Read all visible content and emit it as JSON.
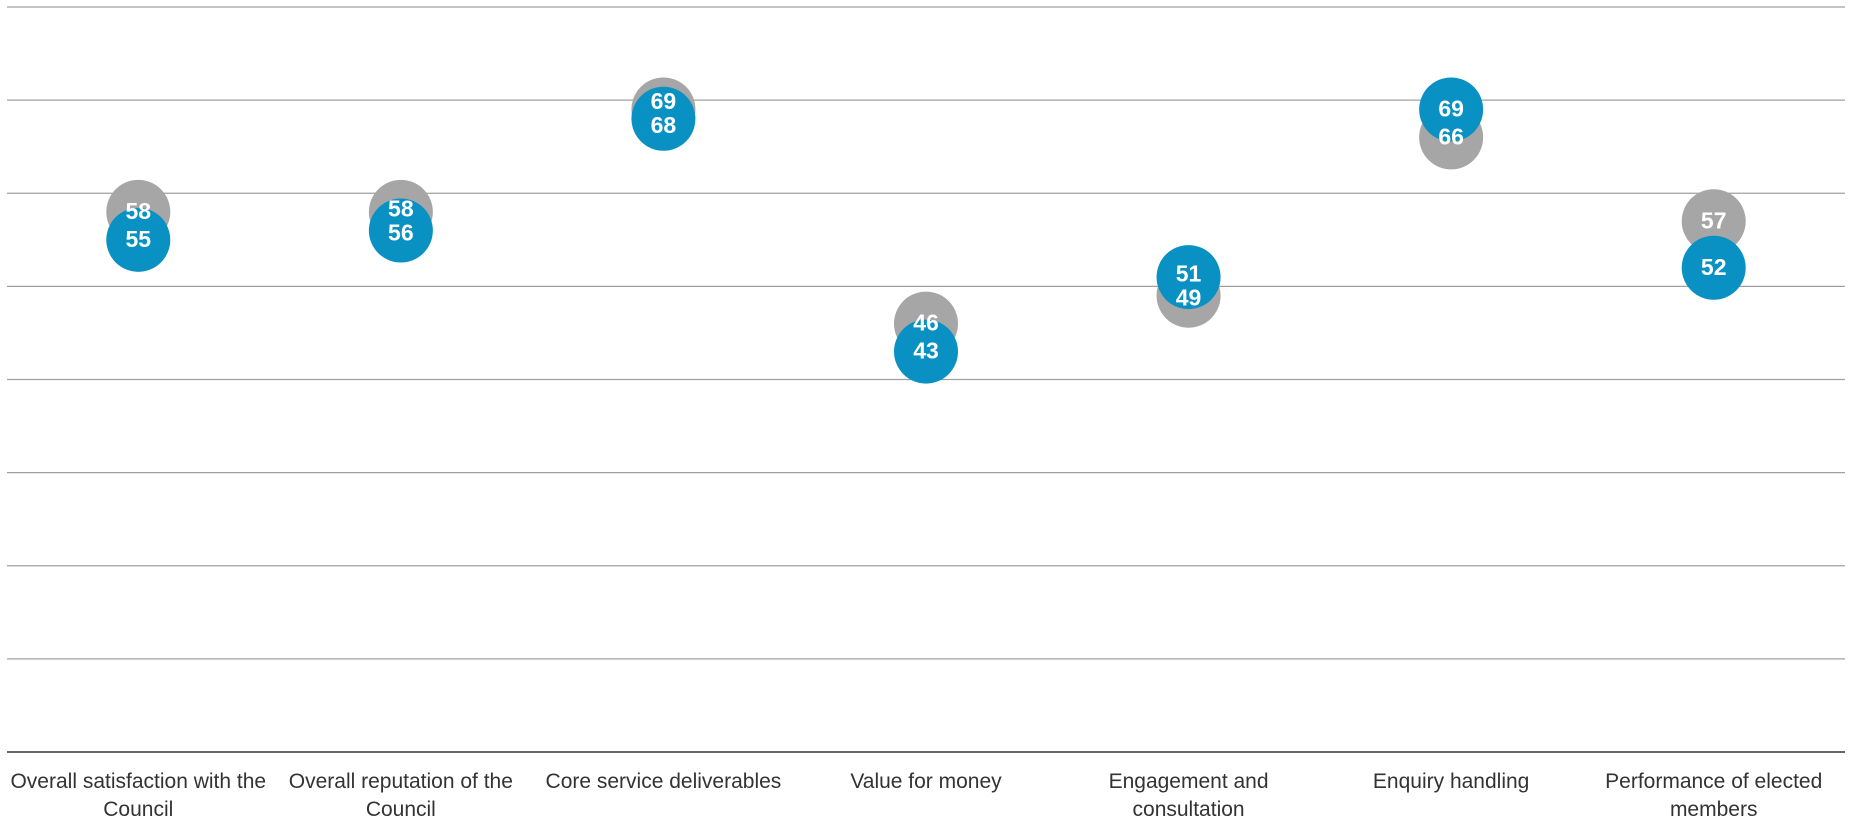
{
  "chart_data": {
    "type": "dot",
    "categories": [
      "Overall satisfaction with the Council",
      "Overall reputation of the Council",
      "Core service deliverables",
      "Value for money",
      "Engagement and consultation",
      "Enquiry handling",
      "Performance of elected members"
    ],
    "series": [
      {
        "color": "#a6a6a6",
        "values": [
          58,
          58,
          69,
          46,
          49,
          66,
          57
        ]
      },
      {
        "color": "#0a91c4",
        "values": [
          55,
          56,
          68,
          43,
          51,
          69,
          52
        ]
      }
    ],
    "ylim": [
      0,
      80
    ],
    "yticks": [
      0,
      10,
      20,
      30,
      40,
      50,
      60,
      70,
      80
    ],
    "grid": true
  }
}
